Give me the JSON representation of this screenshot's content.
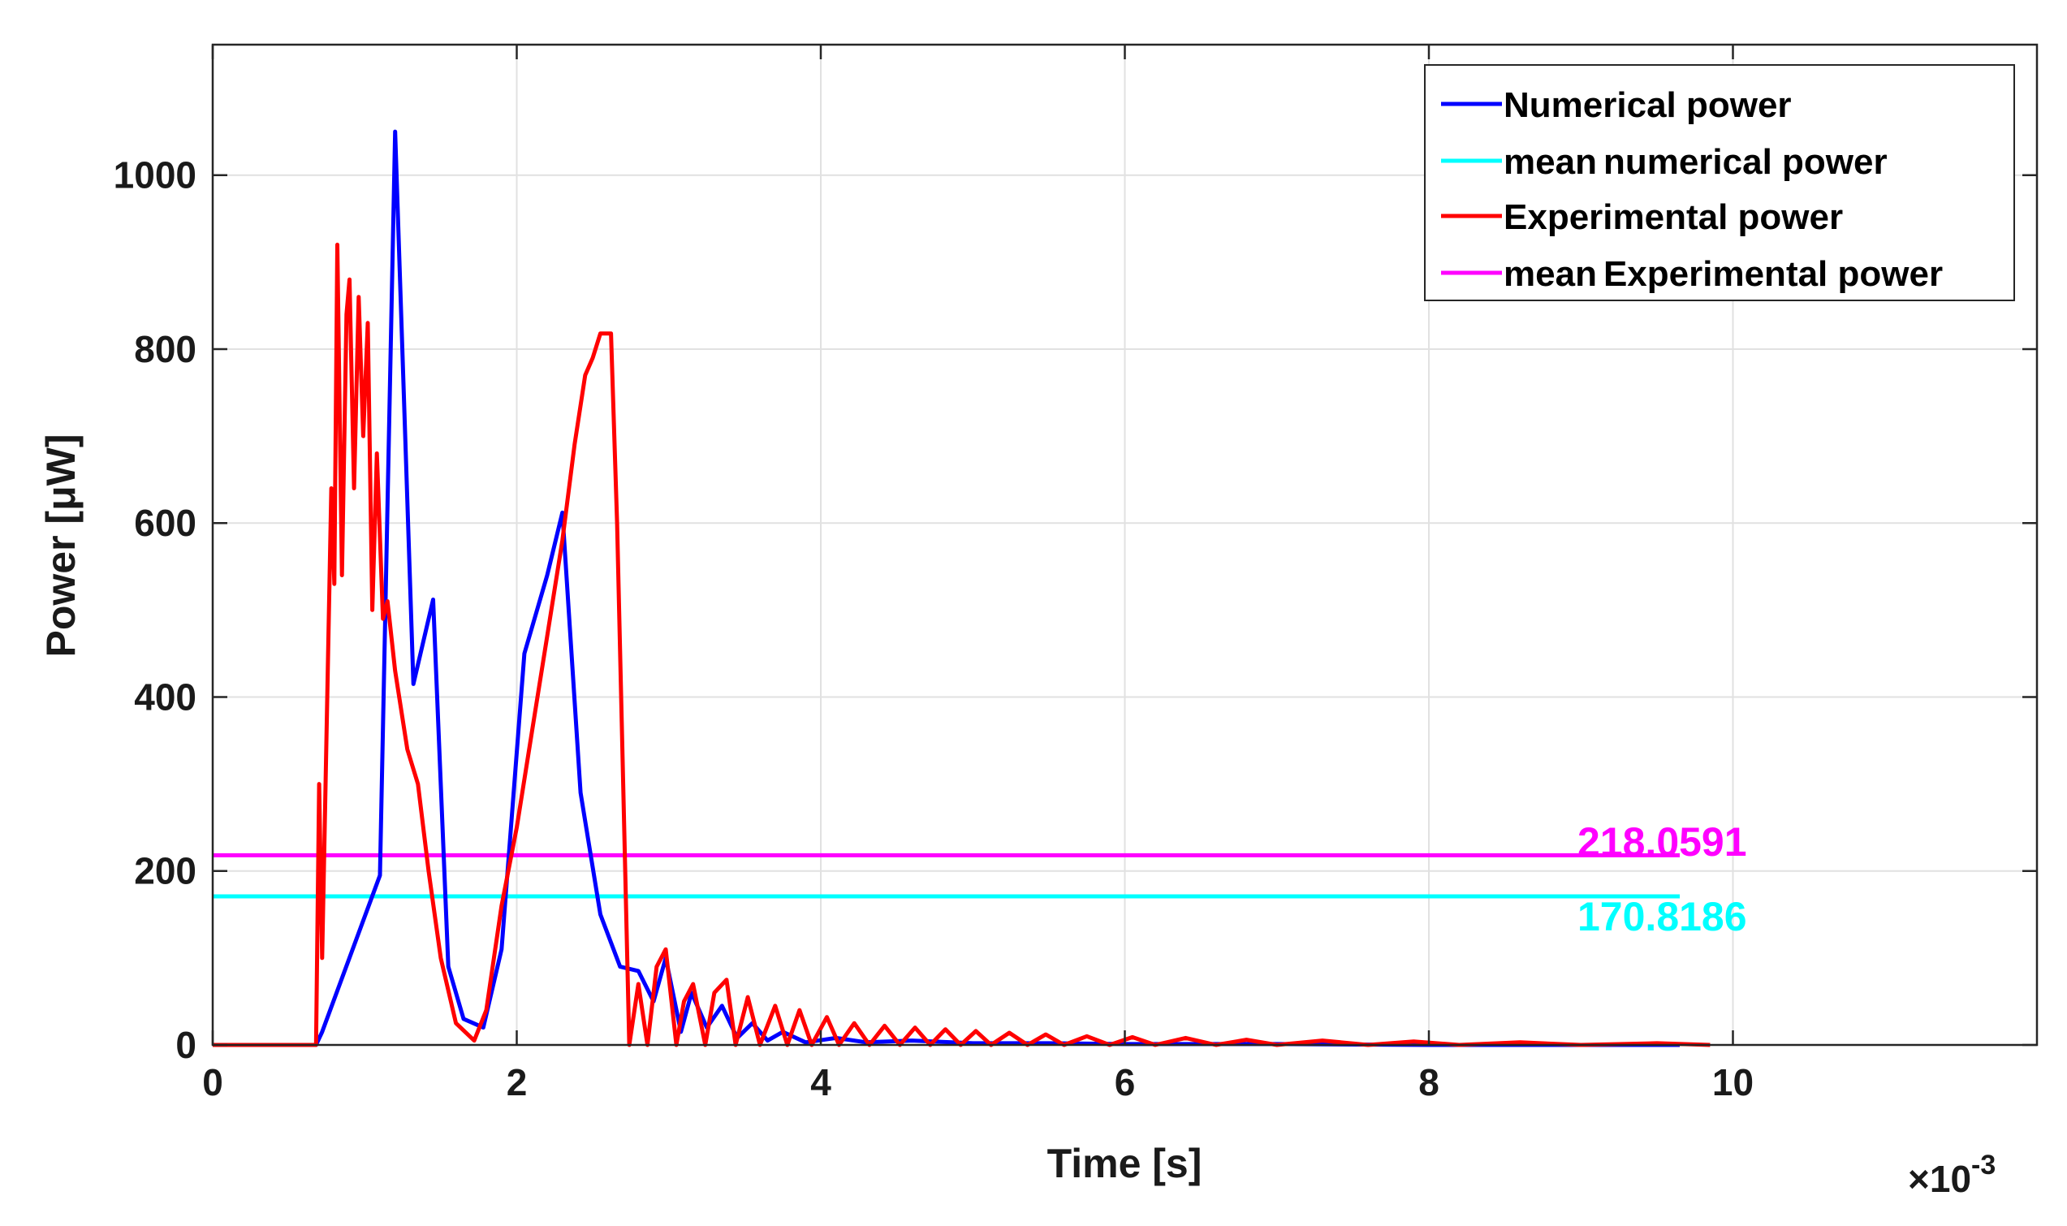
{
  "chart_data": {
    "type": "line",
    "title": "",
    "xlabel": "Time [s]",
    "ylabel": "Power [μW]",
    "x_multiplier": "×10",
    "x_multiplier_exp": "-3",
    "xlim": [
      0,
      12
    ],
    "ylim": [
      0,
      1150
    ],
    "xticks": [
      0,
      2,
      4,
      6,
      8,
      10
    ],
    "yticks": [
      0,
      200,
      400,
      600,
      800,
      1000
    ],
    "xtick_labels": [
      "0",
      "2",
      "4",
      "6",
      "8",
      "10"
    ],
    "ytick_labels": [
      "0",
      "200",
      "400",
      "600",
      "800",
      "1000"
    ],
    "grid": true,
    "legend_position": "top-right",
    "series": [
      {
        "name": "Numerical power",
        "color": "#0000ff",
        "points": [
          [
            0,
            0
          ],
          [
            0.5,
            0
          ],
          [
            0.68,
            0
          ],
          [
            0.72,
            15
          ],
          [
            1.1,
            195
          ],
          [
            1.2,
            1050
          ],
          [
            1.32,
            415
          ],
          [
            1.45,
            512
          ],
          [
            1.55,
            90
          ],
          [
            1.65,
            30
          ],
          [
            1.78,
            20
          ],
          [
            1.9,
            110
          ],
          [
            2.05,
            450
          ],
          [
            2.2,
            540
          ],
          [
            2.3,
            612
          ],
          [
            2.42,
            290
          ],
          [
            2.55,
            150
          ],
          [
            2.68,
            90
          ],
          [
            2.8,
            85
          ],
          [
            2.9,
            50
          ],
          [
            2.98,
            100
          ],
          [
            3.08,
            15
          ],
          [
            3.15,
            60
          ],
          [
            3.25,
            20
          ],
          [
            3.35,
            45
          ],
          [
            3.45,
            8
          ],
          [
            3.55,
            25
          ],
          [
            3.65,
            5
          ],
          [
            3.75,
            15
          ],
          [
            3.9,
            3
          ],
          [
            4.1,
            8
          ],
          [
            4.3,
            3
          ],
          [
            4.6,
            5
          ],
          [
            5.0,
            2
          ],
          [
            5.5,
            2
          ],
          [
            6.0,
            1
          ],
          [
            7.0,
            1
          ],
          [
            8.0,
            0
          ],
          [
            9.0,
            0
          ],
          [
            9.65,
            0
          ]
        ]
      },
      {
        "name": "mean numerical power",
        "color": "#00ffff",
        "points": [
          [
            0,
            170.8186
          ],
          [
            9.65,
            170.8186
          ]
        ],
        "label": "170.8186"
      },
      {
        "name": "Experimental power",
        "color": "#ff0000",
        "points": [
          [
            0,
            0
          ],
          [
            0.68,
            0
          ],
          [
            0.7,
            300
          ],
          [
            0.72,
            100
          ],
          [
            0.74,
            280
          ],
          [
            0.78,
            640
          ],
          [
            0.8,
            530
          ],
          [
            0.82,
            920
          ],
          [
            0.85,
            540
          ],
          [
            0.88,
            840
          ],
          [
            0.9,
            880
          ],
          [
            0.93,
            640
          ],
          [
            0.96,
            860
          ],
          [
            0.99,
            700
          ],
          [
            1.02,
            830
          ],
          [
            1.05,
            500
          ],
          [
            1.08,
            680
          ],
          [
            1.12,
            490
          ],
          [
            1.15,
            510
          ],
          [
            1.2,
            430
          ],
          [
            1.28,
            340
          ],
          [
            1.35,
            300
          ],
          [
            1.42,
            200
          ],
          [
            1.5,
            100
          ],
          [
            1.6,
            25
          ],
          [
            1.72,
            5
          ],
          [
            1.8,
            40
          ],
          [
            1.9,
            160
          ],
          [
            2.0,
            250
          ],
          [
            2.1,
            360
          ],
          [
            2.2,
            470
          ],
          [
            2.3,
            580
          ],
          [
            2.38,
            690
          ],
          [
            2.45,
            770
          ],
          [
            2.5,
            790
          ],
          [
            2.55,
            818
          ],
          [
            2.62,
            818
          ],
          [
            2.66,
            600
          ],
          [
            2.7,
            300
          ],
          [
            2.74,
            0
          ],
          [
            2.8,
            70
          ],
          [
            2.86,
            0
          ],
          [
            2.92,
            90
          ],
          [
            2.98,
            110
          ],
          [
            3.05,
            0
          ],
          [
            3.1,
            50
          ],
          [
            3.16,
            70
          ],
          [
            3.24,
            0
          ],
          [
            3.3,
            60
          ],
          [
            3.38,
            75
          ],
          [
            3.44,
            0
          ],
          [
            3.52,
            55
          ],
          [
            3.6,
            0
          ],
          [
            3.7,
            45
          ],
          [
            3.78,
            0
          ],
          [
            3.86,
            40
          ],
          [
            3.94,
            0
          ],
          [
            4.04,
            32
          ],
          [
            4.12,
            0
          ],
          [
            4.22,
            25
          ],
          [
            4.32,
            0
          ],
          [
            4.42,
            22
          ],
          [
            4.52,
            0
          ],
          [
            4.62,
            20
          ],
          [
            4.72,
            0
          ],
          [
            4.82,
            18
          ],
          [
            4.92,
            0
          ],
          [
            5.02,
            16
          ],
          [
            5.12,
            0
          ],
          [
            5.24,
            14
          ],
          [
            5.36,
            0
          ],
          [
            5.48,
            12
          ],
          [
            5.6,
            0
          ],
          [
            5.75,
            10
          ],
          [
            5.9,
            0
          ],
          [
            6.05,
            9
          ],
          [
            6.2,
            0
          ],
          [
            6.4,
            8
          ],
          [
            6.6,
            0
          ],
          [
            6.8,
            6
          ],
          [
            7.0,
            0
          ],
          [
            7.3,
            5
          ],
          [
            7.6,
            0
          ],
          [
            7.9,
            4
          ],
          [
            8.2,
            0
          ],
          [
            8.6,
            3
          ],
          [
            9.0,
            0
          ],
          [
            9.5,
            2
          ],
          [
            9.85,
            0
          ]
        ]
      },
      {
        "name": "mean Experimental power",
        "color": "#ff00ff",
        "points": [
          [
            0,
            218.0591
          ],
          [
            9.65,
            218.0591
          ]
        ],
        "label": "218.0591"
      }
    ],
    "legend_labels": {
      "numerical": "Numerical power",
      "mean_numerical_a": "mean",
      "mean_numerical_b": "numerical power",
      "experimental": "Experimental power",
      "mean_experimental_a": "mean",
      "mean_experimental_b": "Experimental power"
    },
    "mean_labels": {
      "experimental": "218.0591",
      "numerical": "170.8186"
    }
  },
  "colors": {
    "numerical": "#0000ff",
    "mean_numerical": "#00ffff",
    "experimental": "#ff0000",
    "mean_experimental": "#ff00ff"
  }
}
